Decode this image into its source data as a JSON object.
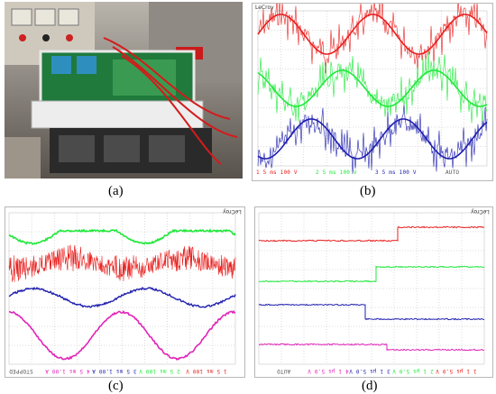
{
  "captions": {
    "a": "(a)",
    "b": "(b)",
    "c": "(c)",
    "d": "(d)"
  },
  "brand": "LeCroy",
  "colors": {
    "red": "#e8201e",
    "green": "#1fe83a",
    "blue": "#1f1fae",
    "magenta": "#e024b8"
  },
  "scope_b": {
    "channels": [
      {
        "num": "1",
        "text": "5 ms 100 V",
        "color": "#e8201e"
      },
      {
        "num": "2",
        "text": "5 ms 100 V",
        "color": "#1fe83a"
      },
      {
        "num": "3",
        "text": "5 ms 100 V",
        "color": "#1f1fae"
      }
    ],
    "mode": "AUTO"
  },
  "scope_c": {
    "channels": [
      {
        "num": "1",
        "text": "5 ms 100 V",
        "color": "#e8201e"
      },
      {
        "num": "2",
        "text": "5 ms 100 V",
        "color": "#1fe83a"
      },
      {
        "num": "3",
        "text": "5 ms 1.00 A",
        "color": "#1f1fae"
      },
      {
        "num": "4",
        "text": "5 ms 1.00 A",
        "color": "#e024b8"
      }
    ],
    "mode": "STOPPED"
  },
  "scope_d": {
    "channels": [
      {
        "num": "1",
        "text": "1 µs 5.0 V",
        "color": "#e8201e"
      },
      {
        "num": "2",
        "text": "1 µs 5.0 V",
        "color": "#1fe83a"
      },
      {
        "num": "3",
        "text": "1 µs 5.0 V",
        "color": "#1f1fae"
      },
      {
        "num": "4",
        "text": "1 µs 5.0 V",
        "color": "#e024b8"
      }
    ],
    "mode": "AUTO"
  }
}
